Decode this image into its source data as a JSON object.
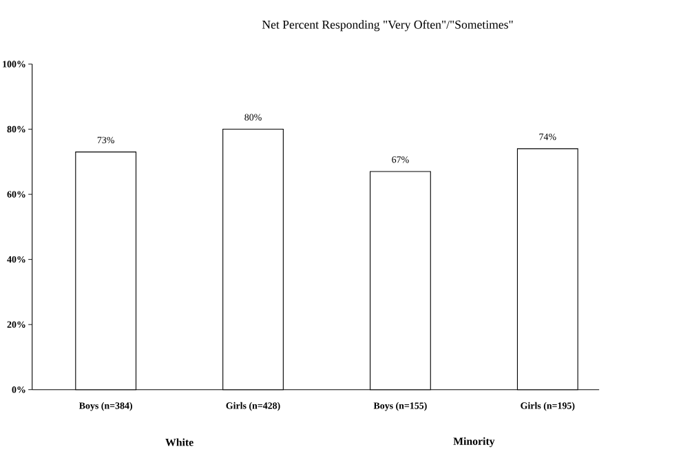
{
  "chart_data": {
    "type": "bar",
    "title": "Net Percent Responding \"Very Often\"/\"Sometimes\"",
    "categories": [
      "Boys (n=384)",
      "Girls (n=428)",
      "Boys (n=155)",
      "Girls (n=195)"
    ],
    "values": [
      73,
      80,
      67,
      74
    ],
    "value_labels": [
      "73%",
      "80%",
      "67%",
      "74%"
    ],
    "color": "#ffffff",
    "ylim": [
      0,
      100
    ],
    "yticks": [
      {
        "value": 0,
        "label": "0%"
      },
      {
        "value": 20,
        "label": "20%"
      },
      {
        "value": 40,
        "label": "40%"
      },
      {
        "value": 60,
        "label": "60%"
      },
      {
        "value": 80,
        "label": "80%"
      },
      {
        "value": 100,
        "label": "100%"
      }
    ],
    "annotations": [
      "White",
      "Minority"
    ],
    "grid": false
  }
}
